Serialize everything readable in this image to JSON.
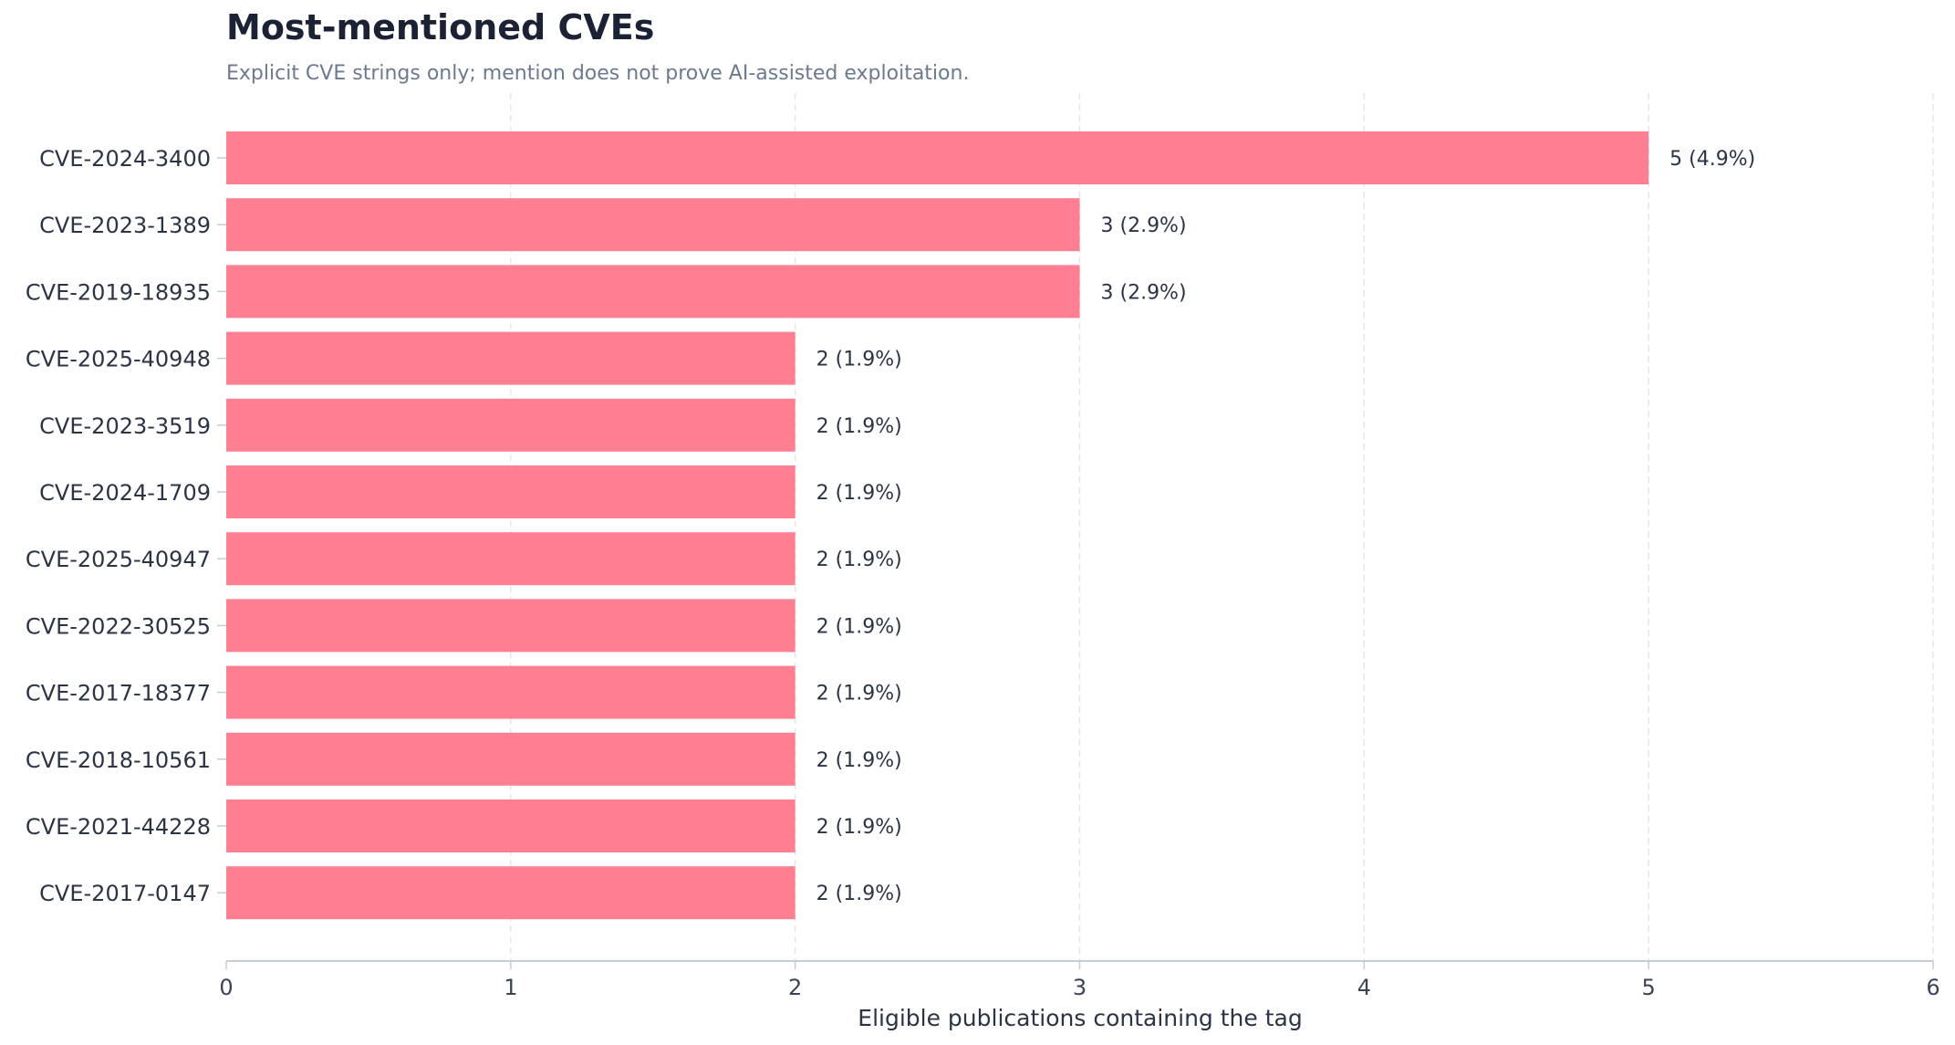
{
  "title": "Most-mentioned CVEs",
  "subtitle": "Explicit CVE strings only; mention does not prove AI-assisted exploitation.",
  "colors": {
    "bar": "#fd7f91",
    "grid": "#e3e6ea",
    "axis": "#c4ccd6"
  },
  "chart_data": {
    "type": "bar",
    "orientation": "horizontal",
    "title": "Most-mentioned CVEs",
    "subtitle": "Explicit CVE strings only; mention does not prove AI-assisted exploitation.",
    "xlabel": "Eligible publications containing the tag",
    "ylabel": "",
    "xlim": [
      0,
      6
    ],
    "xticks": [
      0,
      1,
      2,
      3,
      4,
      5,
      6
    ],
    "grid": "vertical-dashed",
    "categories": [
      "CVE-2024-3400",
      "CVE-2023-1389",
      "CVE-2019-18935",
      "CVE-2025-40948",
      "CVE-2023-3519",
      "CVE-2024-1709",
      "CVE-2025-40947",
      "CVE-2022-30525",
      "CVE-2017-18377",
      "CVE-2018-10561",
      "CVE-2021-44228",
      "CVE-2017-0147"
    ],
    "values": [
      5,
      3,
      3,
      2,
      2,
      2,
      2,
      2,
      2,
      2,
      2,
      2
    ],
    "labels": [
      "5  (4.9%)",
      "3  (2.9%)",
      "3  (2.9%)",
      "2  (1.9%)",
      "2  (1.9%)",
      "2  (1.9%)",
      "2  (1.9%)",
      "2  (1.9%)",
      "2  (1.9%)",
      "2  (1.9%)",
      "2  (1.9%)",
      "2  (1.9%)"
    ]
  }
}
